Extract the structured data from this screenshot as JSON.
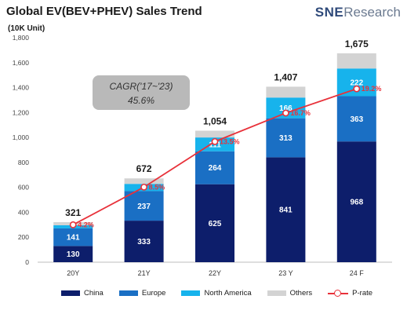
{
  "header": {
    "title": "Global EV(BEV+PHEV)  Sales Trend",
    "unit": "(10K Unit)"
  },
  "logo": {
    "brand": "SNE",
    "rest": "Research"
  },
  "cagr": {
    "line1": "CAGR('17~'23)",
    "line2": "45.6%"
  },
  "colors": {
    "china": "#0d1e6b",
    "europe": "#1a6fc4",
    "north_america": "#17b3ec",
    "others": "#d3d3d3",
    "prate": "#e8313a"
  },
  "chart_data": {
    "type": "bar",
    "stacked": true,
    "categories": [
      "20Y",
      "21Y",
      "22Y",
      "23 Y",
      "24 F"
    ],
    "series": [
      {
        "name": "China",
        "values": [
          130,
          333,
          625,
          841,
          968
        ]
      },
      {
        "name": "Europe",
        "values": [
          141,
          237,
          264,
          313,
          363
        ]
      },
      {
        "name": "North America",
        "values": [
          25,
          58,
          111,
          166,
          222
        ]
      },
      {
        "name": "Others",
        "values": [
          25,
          44,
          54,
          87,
          122
        ]
      }
    ],
    "totals": [
      321,
      672,
      1054,
      1407,
      1675
    ],
    "line_series": {
      "name": "P-rate",
      "values": [
        300,
        602,
        967,
        1196,
        1390
      ],
      "labels": [
        "4.2%",
        "8.5%",
        "13.5%",
        "16.7%",
        "19.2%"
      ]
    },
    "segment_labels": {
      "China": [
        "130",
        "333",
        "625",
        "841",
        "968"
      ],
      "Europe": [
        "141",
        "237",
        "264",
        "313",
        "363"
      ],
      "North America": [
        "",
        "",
        "111",
        "166",
        "222"
      ]
    },
    "yticks": [
      "0",
      "200",
      "400",
      "600",
      "800",
      "1,000",
      "1,200",
      "1,400",
      "1,600",
      "1,800"
    ],
    "ylim": [
      0,
      1800
    ],
    "grid": false,
    "legend_position": "bottom"
  },
  "legend": {
    "china": "China",
    "europe": "Europe",
    "north_america": "North America",
    "others": "Others",
    "prate": "P-rate"
  }
}
